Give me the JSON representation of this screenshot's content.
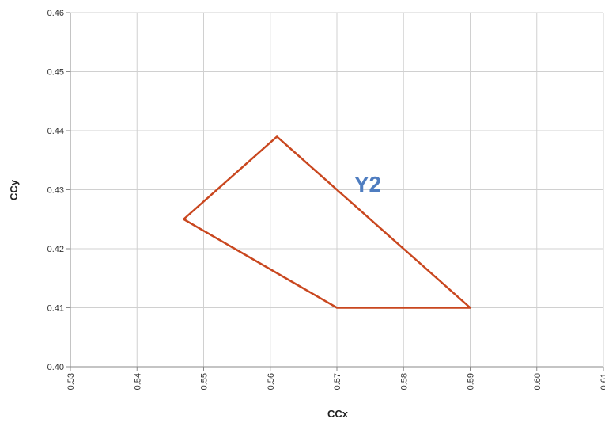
{
  "chart_data": {
    "type": "line",
    "x_label": "CCx",
    "y_label": "CCy",
    "annotations": [
      "Y2"
    ],
    "series": [
      {
        "name": null,
        "color": "#c9471f",
        "x": [
          0.547,
          0.561,
          0.59,
          0.57,
          0.547
        ],
        "values": [
          0.425,
          0.439,
          0.41,
          0.41,
          0.425
        ]
      }
    ],
    "xlim": [
      0.53,
      0.61
    ],
    "xticks": [
      0.53,
      0.54,
      0.55,
      0.56,
      0.57,
      0.58,
      0.59,
      {
        "value": 0.6,
        "label": "0.60"
      },
      0.61
    ],
    "ylim": [
      0.4,
      0.46
    ],
    "yticks": [
      {
        "value": 0.4,
        "label": "0.40"
      },
      0.41,
      0.42,
      0.43,
      0.44,
      0.45,
      0.46
    ],
    "grid": true
  }
}
